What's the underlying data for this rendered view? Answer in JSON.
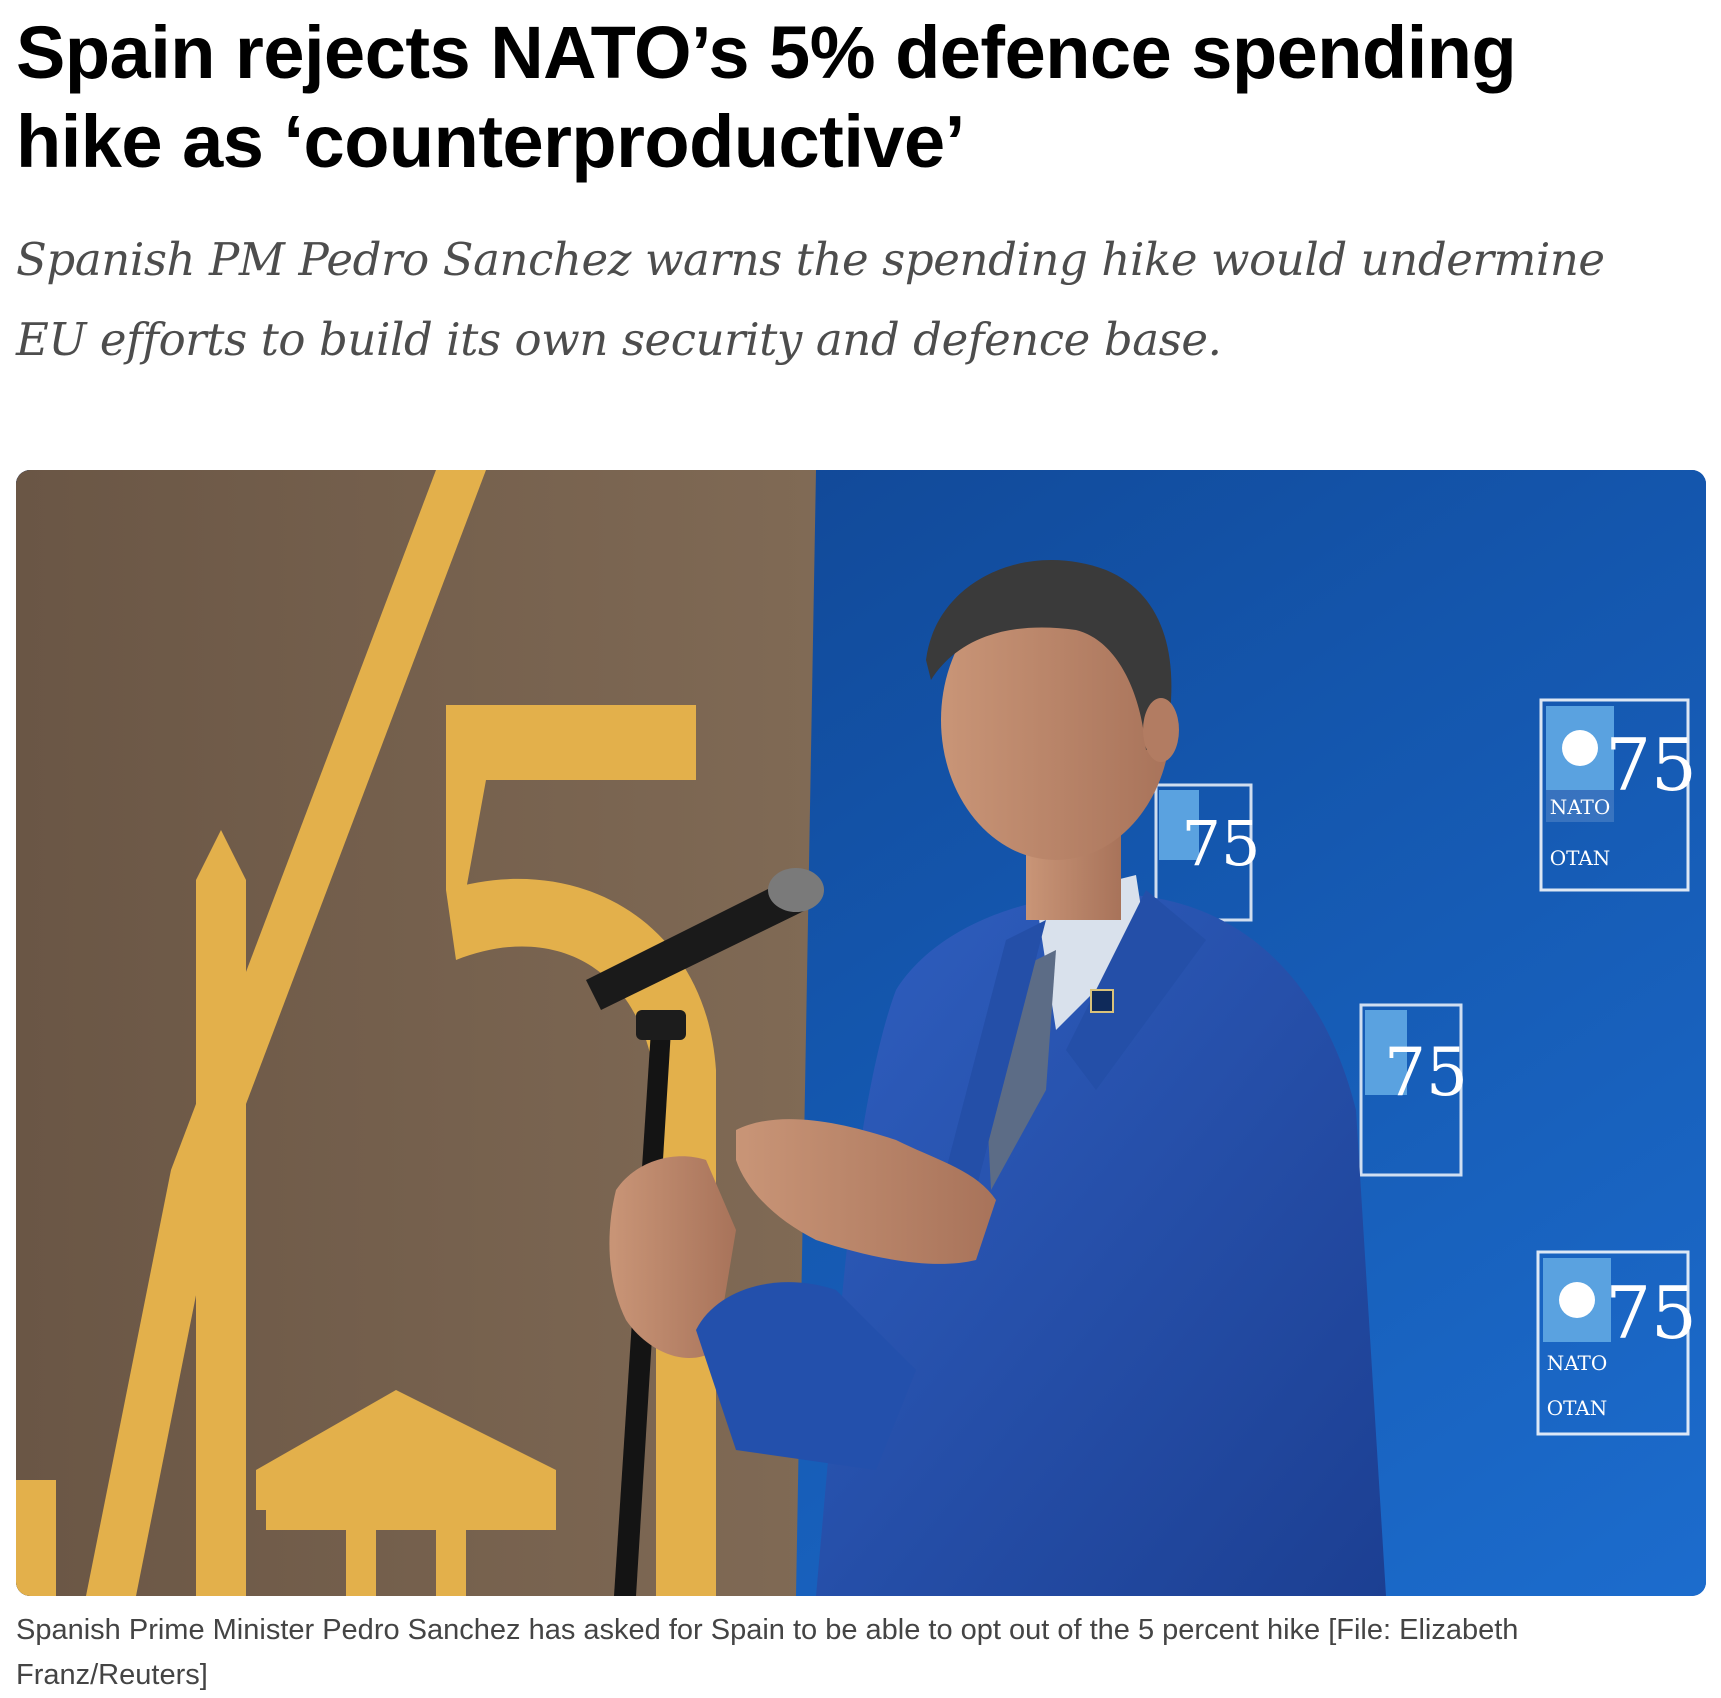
{
  "article": {
    "headline_line1": "Spain rejects NATO’s 5% defence spending",
    "headline_line2": "hike as ‘counterproductive’",
    "standfirst_line1": "Spanish PM Pedro Sanchez warns the spending hike would undermine",
    "standfirst_line2": "EU efforts to build its own security and defence base.",
    "image": {
      "logo_text_nato": "NATO",
      "logo_text_otan": "OTAN",
      "logo_number": "75"
    },
    "caption_line1": "Spanish Prime Minister Pedro Sanchez has asked for Spain to be able to opt out of the 5 percent hike [File: Elizabeth",
    "caption_line2": "Franz/Reuters]"
  },
  "colors": {
    "headline": "#000000",
    "standfirst": "#4d4d4d",
    "caption": "#444444",
    "backdrop_brown": "#7a6450",
    "backdrop_gold": "#e3b04b",
    "backdrop_blue": "#1456ad",
    "suit_blue": "#2a56b6"
  }
}
